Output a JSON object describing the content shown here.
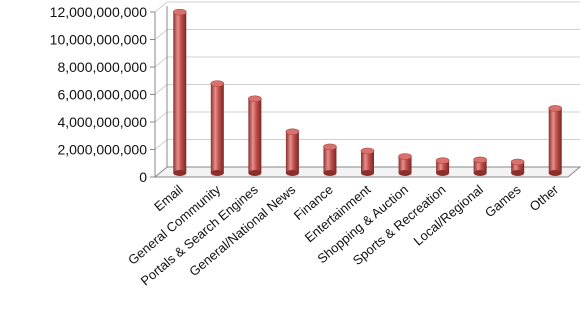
{
  "chart_data": {
    "type": "bar",
    "style": "3d-cylinder",
    "title": "",
    "xlabel": "",
    "ylabel": "",
    "categories": [
      "Email",
      "General Community",
      "Portals & Search Engines",
      "General/National News",
      "Finance",
      "Entertainment",
      "Shopping & Auction",
      "Sports & Recreation",
      "Local/Regional",
      "Games",
      "Other"
    ],
    "values": [
      11700000000,
      6500000000,
      5400000000,
      3000000000,
      1900000000,
      1600000000,
      1200000000,
      900000000,
      950000000,
      800000000,
      4700000000
    ],
    "ylim": [
      0,
      12000000000
    ],
    "yticks": [
      0,
      2000000000,
      4000000000,
      6000000000,
      8000000000,
      10000000000,
      12000000000
    ],
    "ytick_labels": [
      "0",
      "2,000,000,000",
      "4,000,000,000",
      "6,000,000,000",
      "8,000,000,000",
      "10,000,000,000",
      "12,000,000,000"
    ],
    "grid": true,
    "legend": "none",
    "colors": {
      "bar": "#c0504d",
      "bar_dark": "#8c2f2c",
      "bar_light": "#e6908d",
      "grid": "#d0d0d0",
      "axis": "#888888"
    }
  }
}
